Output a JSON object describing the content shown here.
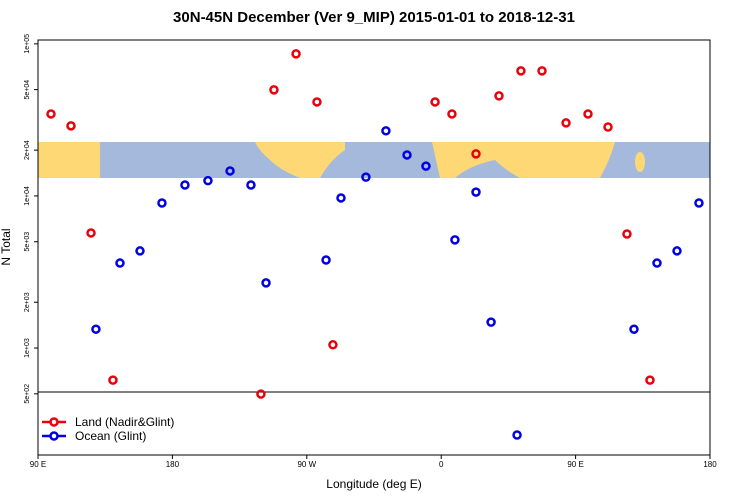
{
  "chart_data": {
    "type": "scatter",
    "title": "30N-45N December (Ver 9_MIP)   2015-01-01 to 2018-12-31",
    "x_label": "Longitude (deg E)",
    "y_label": "N Total",
    "log_y": true,
    "legend": "bottom-left",
    "xlim": [
      90,
      540
    ],
    "ylim": [
      198,
      106000
    ],
    "xticks": [
      {
        "value": 90,
        "label": "90 E"
      },
      180,
      {
        "value": 270,
        "label": "90 W"
      },
      {
        "value": 360,
        "label": "0"
      },
      {
        "value": 450,
        "label": "90 E"
      },
      {
        "value": 540,
        "label": "180"
      }
    ],
    "yticks": [
      {
        "value": 100000,
        "label": "1e+05"
      },
      {
        "value": 50000,
        "label": "5e+04"
      },
      {
        "value": 20000,
        "label": "2e+04"
      },
      {
        "value": 10000,
        "label": "1e+04"
      },
      {
        "value": 5000,
        "label": "5e+03"
      },
      {
        "value": 2000,
        "label": "2e+03"
      },
      {
        "value": 1000,
        "label": "1e+03"
      },
      {
        "value": 500,
        "label": "5e+02"
      }
    ],
    "series": [
      {
        "name": "Land (Nadir&Glint)",
        "color": "#e8000b",
        "x": [
          98.7,
          112.1,
          125.5,
          140.2,
          239.3,
          248.0,
          262.8,
          276.8,
          287.5,
          355.9,
          367.2,
          383.3,
          398.7,
          413.4,
          427.5,
          443.6,
          458.3,
          471.7,
          484.4,
          499.8
        ],
        "values": [
          34600,
          28900,
          5710,
          615,
          498,
          49800,
          85900,
          41500,
          1050,
          41500,
          34600,
          18900,
          45500,
          66400,
          66400,
          30200,
          34600,
          28400,
          5620,
          615
        ]
      },
      {
        "name": "Ocean (Glint)",
        "color": "#0000e0",
        "x": [
          128.8,
          144.9,
          158.3,
          173.0,
          188.4,
          203.8,
          218.6,
          232.6,
          242.7,
          282.9,
          292.9,
          309.6,
          323.0,
          337.1,
          349.8,
          369.2,
          383.3,
          393.4,
          410.8,
          489.1,
          504.5,
          517.9,
          532.6
        ],
        "values": [
          1330,
          3620,
          4350,
          8990,
          11800,
          12600,
          14600,
          11800,
          2680,
          3790,
          9700,
          13300,
          26800,
          18600,
          15700,
          5140,
          10600,
          1480,
          268,
          1330,
          3620,
          4350,
          8990
        ]
      }
    ]
  }
}
